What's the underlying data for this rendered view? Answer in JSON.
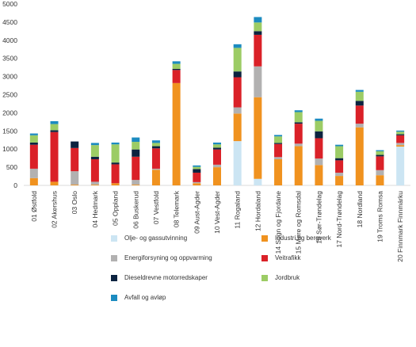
{
  "chart_data": {
    "type": "bar",
    "stacked": true,
    "ylim": [
      0,
      5000
    ],
    "yticks": [
      0,
      500,
      1000,
      1500,
      2000,
      2500,
      3000,
      3500,
      4000,
      4500,
      5000
    ],
    "grid": false,
    "legend_position": "bottom",
    "categories": [
      "01 Østfold",
      "02 Akershus",
      "03 Oslo",
      "04 Hedmark",
      "05 Oppland",
      "06 Buskerud",
      "07 Vestfold",
      "08 Telemark",
      "09 Aust-Agder",
      "10 Vest-Agder",
      "11 Rogaland",
      "12 Hordaland",
      "14 Sogn og Fjordane",
      "15 Møre og Romsdal",
      "16 Sør-Trøndelag",
      "17 Nord-Trøndelag",
      "18 Nordland",
      "19 Troms Romsa",
      "20 Finnmark Finnmárku"
    ],
    "series": [
      {
        "name": "Olje- og gassutvinning",
        "color": "#cce5f3",
        "values": [
          0,
          0,
          0,
          0,
          0,
          0,
          0,
          0,
          0,
          0,
          1220,
          180,
          0,
          0,
          0,
          0,
          0,
          0,
          1070
        ]
      },
      {
        "name": "Industri og bergverk",
        "color": "#f0921f",
        "values": [
          200,
          100,
          20,
          20,
          60,
          20,
          430,
          2820,
          60,
          500,
          760,
          2250,
          720,
          1080,
          560,
          260,
          1600,
          280,
          40
        ]
      },
      {
        "name": "Energiforsyning og oppvarming",
        "color": "#b2b1b1",
        "values": [
          260,
          0,
          370,
          80,
          0,
          130,
          30,
          0,
          30,
          70,
          170,
          850,
          60,
          70,
          180,
          90,
          100,
          140,
          60
        ]
      },
      {
        "name": "Veitrafikk",
        "color": "#da2128",
        "values": [
          660,
          1370,
          640,
          620,
          520,
          640,
          560,
          360,
          260,
          420,
          830,
          870,
          360,
          550,
          560,
          340,
          500,
          380,
          210
        ]
      },
      {
        "name": "Dieseldrevne motorredskaper",
        "color": "#0c2340",
        "values": [
          60,
          50,
          180,
          70,
          50,
          200,
          60,
          30,
          100,
          50,
          160,
          100,
          30,
          40,
          190,
          60,
          130,
          40,
          30
        ]
      },
      {
        "name": "Jordbruk",
        "color": "#9ccc65",
        "values": [
          200,
          170,
          0,
          320,
          500,
          210,
          90,
          140,
          60,
          90,
          650,
          240,
          180,
          280,
          290,
          330,
          250,
          100,
          70
        ]
      },
      {
        "name": "Avfall og avløp",
        "color": "#1c8bc0",
        "values": [
          50,
          80,
          0,
          60,
          50,
          120,
          70,
          70,
          40,
          50,
          100,
          150,
          40,
          50,
          60,
          40,
          50,
          30,
          30
        ]
      }
    ]
  }
}
